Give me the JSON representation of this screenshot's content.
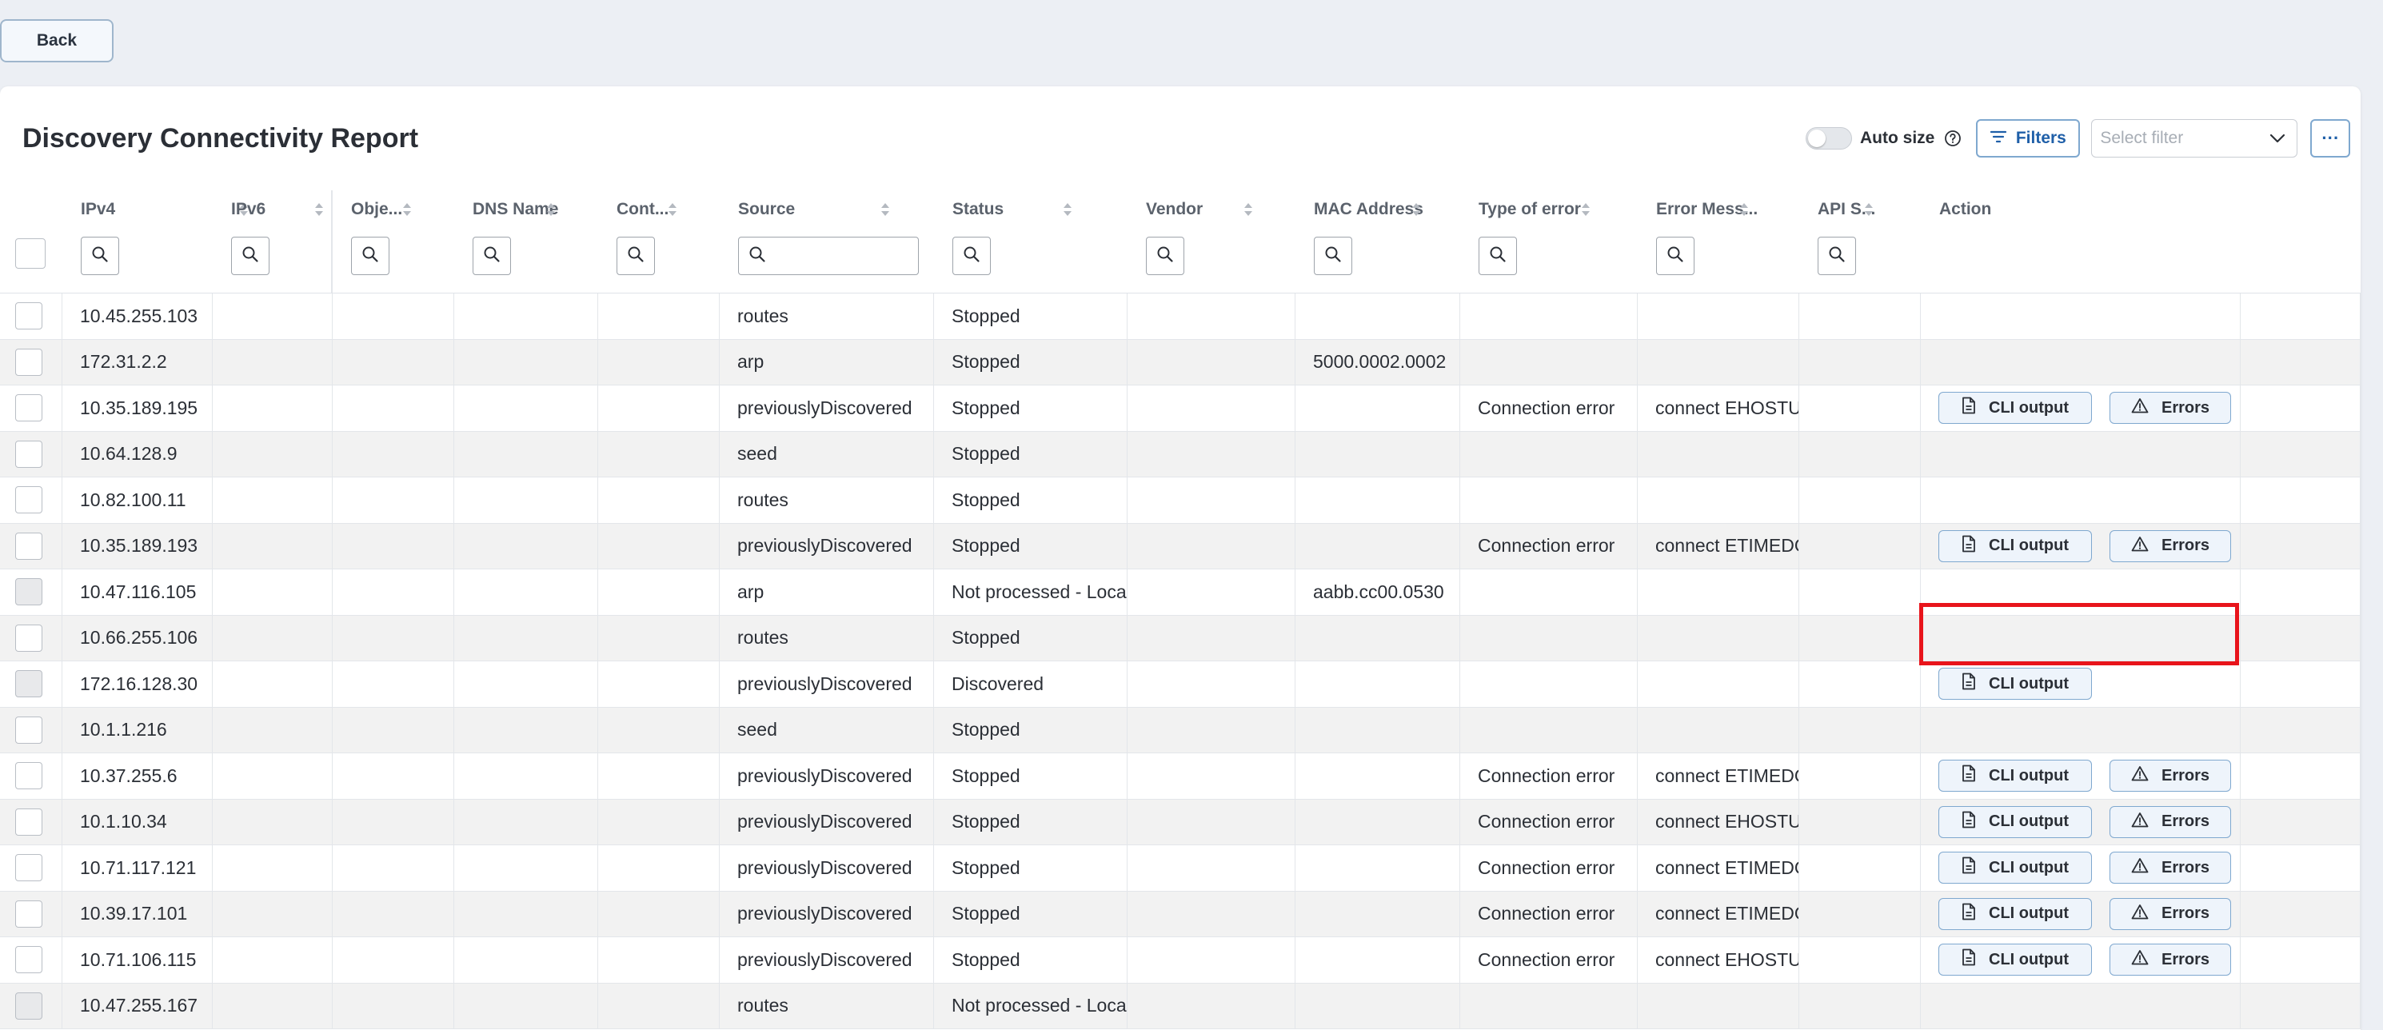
{
  "back_label": "Back",
  "title": "Discovery Connectivity Report",
  "toolbar": {
    "autosize_label": "Auto size",
    "filters_label": "Filters",
    "select_filter_placeholder": "Select filter",
    "more_label": "···"
  },
  "columns": [
    {
      "key": "ipv4",
      "label": "IPv4"
    },
    {
      "key": "ipv6",
      "label": "IPv6"
    },
    {
      "key": "objects",
      "label": "Obje..."
    },
    {
      "key": "dns",
      "label": "DNS Name"
    },
    {
      "key": "context",
      "label": "Cont..."
    },
    {
      "key": "source",
      "label": "Source"
    },
    {
      "key": "status",
      "label": "Status"
    },
    {
      "key": "vendor",
      "label": "Vendor"
    },
    {
      "key": "mac",
      "label": "MAC Address"
    },
    {
      "key": "error_type",
      "label": "Type of error"
    },
    {
      "key": "error_message",
      "label": "Error Mess..."
    },
    {
      "key": "api",
      "label": "API S..."
    },
    {
      "key": "action",
      "label": "Action"
    }
  ],
  "action_labels": {
    "cli": "CLI output",
    "errors": "Errors"
  },
  "rows": [
    {
      "ipv4": "10.45.255.103",
      "source": "routes",
      "status": "Stopped",
      "mac": "",
      "error_type": "",
      "error_message": "",
      "cli": false,
      "errors": false,
      "disabled": false
    },
    {
      "ipv4": "172.31.2.2",
      "source": "arp",
      "status": "Stopped",
      "mac": "5000.0002.0002",
      "error_type": "",
      "error_message": "",
      "cli": false,
      "errors": false,
      "disabled": false
    },
    {
      "ipv4": "10.35.189.195",
      "source": "previouslyDiscovered",
      "status": "Stopped",
      "mac": "",
      "error_type": "Connection error",
      "error_message": "connect EHOSTUNREACH",
      "cli": true,
      "errors": true,
      "disabled": false
    },
    {
      "ipv4": "10.64.128.9",
      "source": "seed",
      "status": "Stopped",
      "mac": "",
      "error_type": "",
      "error_message": "",
      "cli": false,
      "errors": false,
      "disabled": false
    },
    {
      "ipv4": "10.82.100.11",
      "source": "routes",
      "status": "Stopped",
      "mac": "",
      "error_type": "",
      "error_message": "",
      "cli": false,
      "errors": false,
      "disabled": false
    },
    {
      "ipv4": "10.35.189.193",
      "source": "previouslyDiscovered",
      "status": "Stopped",
      "mac": "",
      "error_type": "Connection error",
      "error_message": "connect ETIMEDOUT",
      "cli": true,
      "errors": true,
      "disabled": false
    },
    {
      "ipv4": "10.47.116.105",
      "source": "arp",
      "status": "Not processed - Local",
      "mac": "aabb.cc00.0530",
      "error_type": "",
      "error_message": "",
      "cli": false,
      "errors": false,
      "disabled": true
    },
    {
      "ipv4": "10.66.255.106",
      "source": "routes",
      "status": "Stopped",
      "mac": "",
      "error_type": "",
      "error_message": "",
      "cli": false,
      "errors": false,
      "disabled": false
    },
    {
      "ipv4": "172.16.128.30",
      "source": "previouslyDiscovered",
      "status": "Discovered",
      "mac": "",
      "error_type": "",
      "error_message": "",
      "cli": true,
      "errors": false,
      "disabled": true
    },
    {
      "ipv4": "10.1.1.216",
      "source": "seed",
      "status": "Stopped",
      "mac": "",
      "error_type": "",
      "error_message": "",
      "cli": false,
      "errors": false,
      "disabled": false
    },
    {
      "ipv4": "10.37.255.6",
      "source": "previouslyDiscovered",
      "status": "Stopped",
      "mac": "",
      "error_type": "Connection error",
      "error_message": "connect ETIMEDOUT",
      "cli": true,
      "errors": true,
      "disabled": false
    },
    {
      "ipv4": "10.1.10.34",
      "source": "previouslyDiscovered",
      "status": "Stopped",
      "mac": "",
      "error_type": "Connection error",
      "error_message": "connect EHOSTUNREACH",
      "cli": true,
      "errors": true,
      "disabled": false
    },
    {
      "ipv4": "10.71.117.121",
      "source": "previouslyDiscovered",
      "status": "Stopped",
      "mac": "",
      "error_type": "Connection error",
      "error_message": "connect ETIMEDOUT",
      "cli": true,
      "errors": true,
      "disabled": false
    },
    {
      "ipv4": "10.39.17.101",
      "source": "previouslyDiscovered",
      "status": "Stopped",
      "mac": "",
      "error_type": "Connection error",
      "error_message": "connect ETIMEDOUT",
      "cli": true,
      "errors": true,
      "disabled": false
    },
    {
      "ipv4": "10.71.106.115",
      "source": "previouslyDiscovered",
      "status": "Stopped",
      "mac": "",
      "error_type": "Connection error",
      "error_message": "connect EHOSTUNREACH",
      "cli": true,
      "errors": true,
      "disabled": false
    },
    {
      "ipv4": "10.47.255.167",
      "source": "routes",
      "status": "Not processed - Local",
      "mac": "",
      "error_type": "",
      "error_message": "",
      "cli": false,
      "errors": false,
      "disabled": true
    }
  ],
  "highlighted_row": 5,
  "colors": {
    "accent": "#1f5fa8",
    "highlight": "#e8141b",
    "alt_row": "#f2f2f2"
  }
}
